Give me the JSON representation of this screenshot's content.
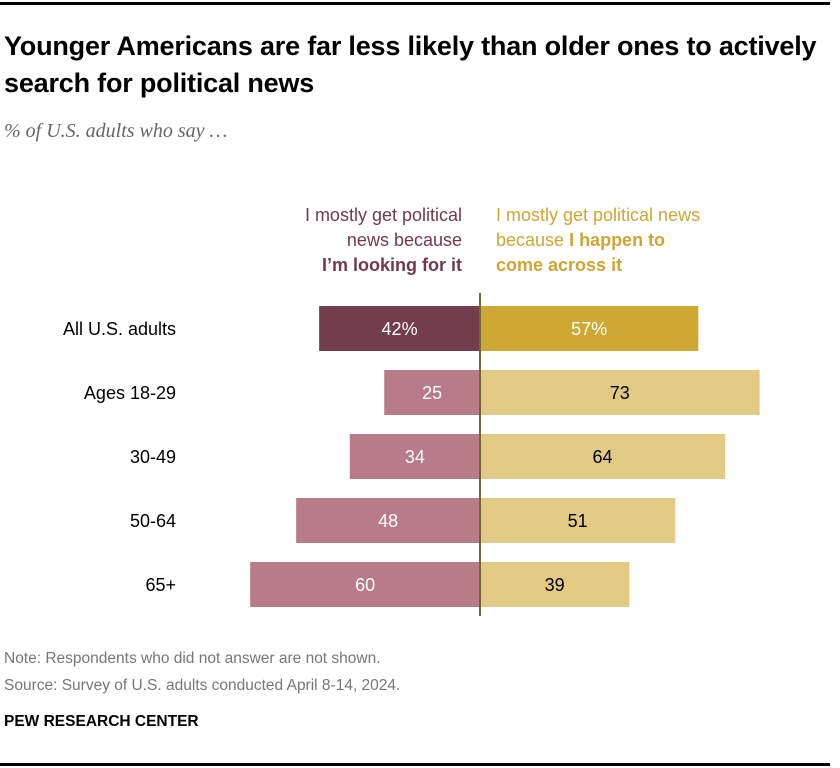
{
  "title": "Younger Americans are far less likely than older ones to actively search for political news",
  "subtitle": "% of U.S. adults who say …",
  "legend": {
    "left": {
      "line1": "I mostly get political",
      "line2": "news because",
      "bold": "I’m looking for it"
    },
    "right": {
      "line1": "I mostly get political news",
      "line2_plain": "because ",
      "line2_bold": "I happen to",
      "line3_bold": "come across it"
    }
  },
  "colors": {
    "left_dark": "#733d4b",
    "left_light": "#b97b87",
    "right_dark": "#cfa733",
    "right_light": "#e2ca84",
    "divider": "#6b6b2e"
  },
  "chart_data": {
    "type": "bar",
    "orientation": "horizontal-diverging",
    "title": "Younger Americans are far less likely than older ones to actively search for political news",
    "subtitle": "% of U.S. adults who say …",
    "categories": [
      "All U.S. adults",
      "Ages 18-29",
      "30-49",
      "50-64",
      "65+"
    ],
    "series": [
      {
        "name": "I mostly get political news because I’m looking for it",
        "side": "left",
        "values": [
          42,
          25,
          34,
          48,
          60
        ],
        "labels": [
          "42%",
          "25",
          "34",
          "48",
          "60"
        ]
      },
      {
        "name": "I mostly get political news because I happen to come across it",
        "side": "right",
        "values": [
          57,
          73,
          64,
          51,
          39
        ],
        "labels": [
          "57%",
          "73",
          "64",
          "51",
          "39"
        ]
      }
    ],
    "xlim": [
      0,
      100
    ],
    "grid": false,
    "legend_placement": "top"
  },
  "footer": {
    "note": "Note: Respondents who did not answer are not shown.",
    "source": "Source: Survey of U.S. adults conducted April 8-14, 2024.",
    "brand": "PEW RESEARCH CENTER"
  }
}
